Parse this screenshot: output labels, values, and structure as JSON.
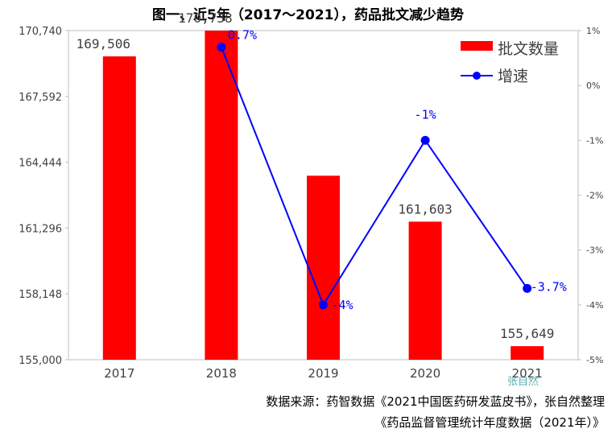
{
  "title": "图一、近5年（2017～2021），药品批文减少趋势",
  "source_line1": "数据来源：药智数据《2021中国医药研发蓝皮书》，张自然整理",
  "source_line2": "《药品监督管理统计年度数据（2021年）》",
  "watermark": "张自然",
  "chart_data": {
    "type": "bar",
    "categories": [
      "2017",
      "2018",
      "2019",
      "2020",
      "2021"
    ],
    "series": [
      {
        "name": "批文数量",
        "type": "bar",
        "axis": "left",
        "color": "#ff0000",
        "values": [
          169506,
          170738,
          163800,
          161603,
          155649
        ],
        "data_labels": [
          "169,506",
          "170,738",
          "",
          "161,603",
          "155,649"
        ]
      },
      {
        "name": "增速",
        "type": "line",
        "axis": "right",
        "color": "#0000ff",
        "values": [
          null,
          0.7,
          -4,
          -1,
          -3.7
        ],
        "data_labels": [
          "",
          "0.7%",
          "-4%",
          "-1%",
          "-3.7%"
        ]
      }
    ],
    "ylim_left": [
      155000,
      170740
    ],
    "yticks_left": [
      "155,000",
      "158,148",
      "161,296",
      "164,444",
      "167,592",
      "170,740"
    ],
    "ylim_right": [
      -5,
      1
    ],
    "yticks_right": [
      "-5%",
      "-4%",
      "-3%",
      "-2%",
      "-1%",
      "0%",
      "1%"
    ],
    "legend": "top-right",
    "grid": false
  }
}
